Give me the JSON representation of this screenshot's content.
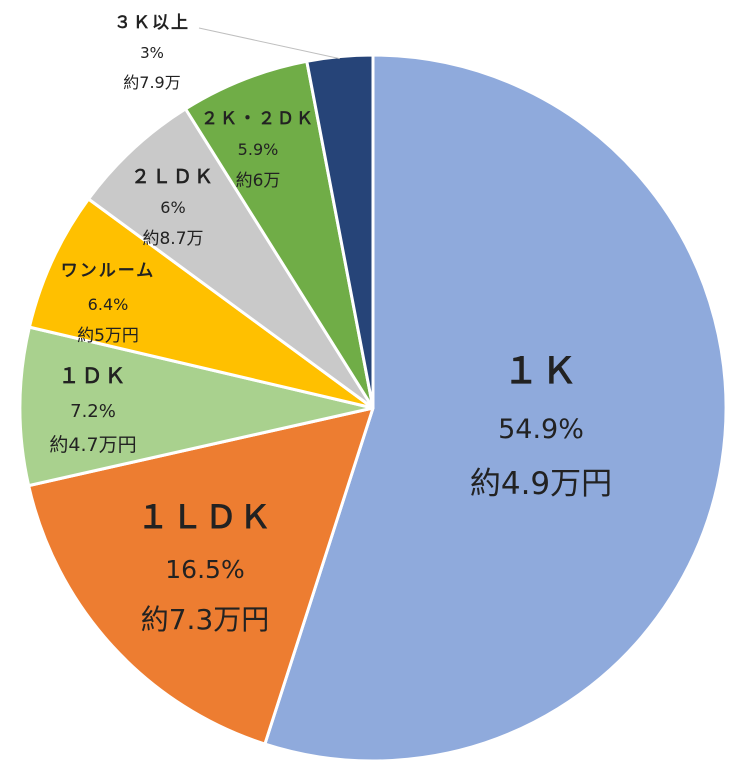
{
  "chart_data": {
    "type": "pie",
    "title": "",
    "slices": [
      {
        "name": "１Ｋ",
        "percent": 54.9,
        "percent_label": "54.9%",
        "rent_label": "約4.9万円",
        "color": "#8FAADC"
      },
      {
        "name": "１ＬＤＫ",
        "percent": 16.5,
        "percent_label": "16.5%",
        "rent_label": "約7.3万円",
        "color": "#ED7D31"
      },
      {
        "name": "１ＤＫ",
        "percent": 7.2,
        "percent_label": "7.2%",
        "rent_label": "約4.7万円",
        "color": "#A9D18E"
      },
      {
        "name": "ワンルーム",
        "percent": 6.4,
        "percent_label": "6.4%",
        "rent_label": "約5万円",
        "color": "#FFC000"
      },
      {
        "name": "２ＬＤＫ",
        "percent": 6,
        "percent_label": "6%",
        "rent_label": "約8.7万",
        "color": "#C9C9C9"
      },
      {
        "name": "２Ｋ・２ＤＫ",
        "percent": 5.9,
        "percent_label": "5.9%",
        "rent_label": "約6万",
        "color": "#70AD47"
      },
      {
        "name": "３Ｋ以上",
        "percent": 3,
        "percent_label": "3%",
        "rent_label": "約7.9万",
        "color": "#264478"
      }
    ]
  }
}
